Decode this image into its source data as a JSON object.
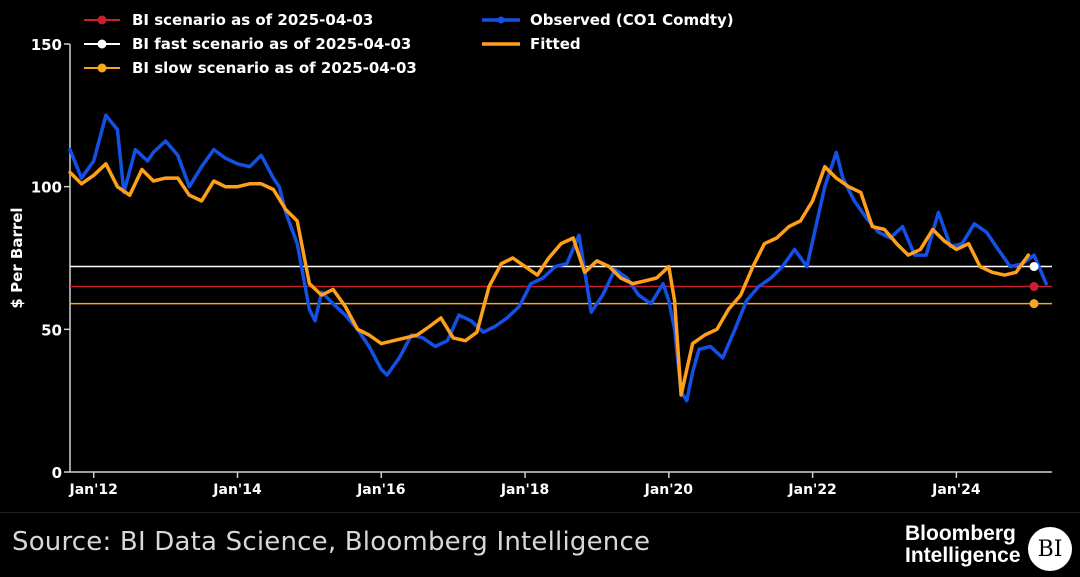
{
  "chart_data": {
    "type": "line",
    "title": "",
    "xlabel": "",
    "ylabel": "$ Per Barrel",
    "ylim": [
      0,
      150
    ],
    "yticks": [
      0,
      50,
      100,
      150
    ],
    "xticks": [
      {
        "label": "Jan'12",
        "value": 2012.0
      },
      {
        "label": "Jan'14",
        "value": 2014.0
      },
      {
        "label": "Jan'16",
        "value": 2016.0
      },
      {
        "label": "Jan'18",
        "value": 2018.0
      },
      {
        "label": "Jan'20",
        "value": 2020.0
      },
      {
        "label": "Jan'22",
        "value": 2022.0
      },
      {
        "label": "Jan'24",
        "value": 2024.0
      }
    ],
    "xlim": [
      2011.67,
      2025.33
    ],
    "grid": false,
    "legend_position": "top-left",
    "series": [
      {
        "name": "Observed (CO1 Comdty)",
        "color": "#1450e6",
        "x": [
          2011.67,
          2011.83,
          2012.0,
          2012.17,
          2012.33,
          2012.42,
          2012.58,
          2012.75,
          2012.83,
          2013.0,
          2013.17,
          2013.33,
          2013.5,
          2013.67,
          2013.83,
          2014.0,
          2014.17,
          2014.33,
          2014.5,
          2014.58,
          2014.67,
          2014.83,
          2015.0,
          2015.08,
          2015.17,
          2015.33,
          2015.5,
          2015.67,
          2015.83,
          2016.0,
          2016.08,
          2016.25,
          2016.42,
          2016.58,
          2016.75,
          2016.92,
          2017.08,
          2017.25,
          2017.42,
          2017.58,
          2017.75,
          2017.92,
          2018.08,
          2018.25,
          2018.42,
          2018.58,
          2018.75,
          2018.92,
          2019.08,
          2019.25,
          2019.42,
          2019.58,
          2019.75,
          2019.92,
          2020.0,
          2020.08,
          2020.17,
          2020.25,
          2020.33,
          2020.42,
          2020.58,
          2020.75,
          2020.92,
          2021.08,
          2021.25,
          2021.42,
          2021.58,
          2021.75,
          2021.92,
          2022.08,
          2022.17,
          2022.33,
          2022.42,
          2022.58,
          2022.75,
          2022.92,
          2023.08,
          2023.25,
          2023.42,
          2023.58,
          2023.75,
          2023.92,
          2024.08,
          2024.25,
          2024.42,
          2024.58,
          2024.75,
          2024.92,
          2025.08,
          2025.25
        ],
        "y": [
          113,
          103,
          109,
          125,
          120,
          98,
          113,
          109,
          112,
          116,
          111,
          100,
          107,
          113,
          110,
          108,
          107,
          111,
          103,
          100,
          91,
          80,
          57,
          53,
          63,
          59,
          55,
          50,
          44,
          36,
          34,
          40,
          48,
          47,
          44,
          46,
          55,
          53,
          49,
          51,
          54,
          58,
          66,
          68,
          72,
          73,
          83,
          56,
          62,
          71,
          68,
          62,
          59,
          66,
          60,
          50,
          28,
          25,
          35,
          43,
          44,
          40,
          50,
          60,
          65,
          68,
          72,
          78,
          72,
          90,
          100,
          112,
          103,
          95,
          89,
          84,
          82,
          86,
          76,
          76,
          91,
          79,
          80,
          87,
          84,
          78,
          72,
          73,
          76,
          66
        ]
      },
      {
        "name": "Fitted",
        "color": "#ff9f1a",
        "x": [
          2011.67,
          2011.83,
          2012.0,
          2012.17,
          2012.33,
          2012.5,
          2012.67,
          2012.83,
          2013.0,
          2013.17,
          2013.33,
          2013.5,
          2013.67,
          2013.83,
          2014.0,
          2014.17,
          2014.33,
          2014.5,
          2014.67,
          2014.83,
          2015.0,
          2015.17,
          2015.33,
          2015.5,
          2015.67,
          2015.83,
          2016.0,
          2016.17,
          2016.33,
          2016.5,
          2016.67,
          2016.83,
          2017.0,
          2017.17,
          2017.33,
          2017.5,
          2017.67,
          2017.83,
          2018.0,
          2018.17,
          2018.33,
          2018.5,
          2018.67,
          2018.83,
          2019.0,
          2019.17,
          2019.33,
          2019.5,
          2019.67,
          2019.83,
          2020.0,
          2020.08,
          2020.17,
          2020.33,
          2020.5,
          2020.67,
          2020.83,
          2021.0,
          2021.17,
          2021.33,
          2021.5,
          2021.67,
          2021.83,
          2022.0,
          2022.17,
          2022.33,
          2022.5,
          2022.67,
          2022.83,
          2023.0,
          2023.17,
          2023.33,
          2023.5,
          2023.67,
          2023.83,
          2024.0,
          2024.17,
          2024.33,
          2024.5,
          2024.67,
          2024.83,
          2025.0
        ],
        "y": [
          105,
          101,
          104,
          108,
          100,
          97,
          106,
          102,
          103,
          103,
          97,
          95,
          102,
          100,
          100,
          101,
          101,
          99,
          92,
          88,
          66,
          62,
          64,
          58,
          50,
          48,
          45,
          46,
          47,
          48,
          51,
          54,
          47,
          46,
          49,
          65,
          73,
          75,
          72,
          69,
          75,
          80,
          82,
          70,
          74,
          72,
          68,
          66,
          67,
          68,
          72,
          60,
          27,
          45,
          48,
          50,
          57,
          62,
          72,
          80,
          82,
          86,
          88,
          95,
          107,
          103,
          100,
          98,
          86,
          85,
          80,
          76,
          78,
          85,
          81,
          78,
          80,
          72,
          70,
          69,
          70,
          76
        ]
      }
    ],
    "scenarios": [
      {
        "name": "BI scenario as of 2025-04-03",
        "value": 65,
        "color": "#c8202f",
        "x": 2025.08
      },
      {
        "name": "BI fast scenario as of 2025-04-03",
        "value": 72,
        "color": "#ffffff",
        "x": 2025.08
      },
      {
        "name": "BI slow scenario as of 2025-04-03",
        "value": 59,
        "color": "#f5a623",
        "x": 2025.08
      }
    ]
  },
  "footer": {
    "source": "Source: BI Data Science, Bloomberg Intelligence",
    "brand_line1": "Bloomberg",
    "brand_line2": "Intelligence",
    "logo_text": "BI"
  }
}
